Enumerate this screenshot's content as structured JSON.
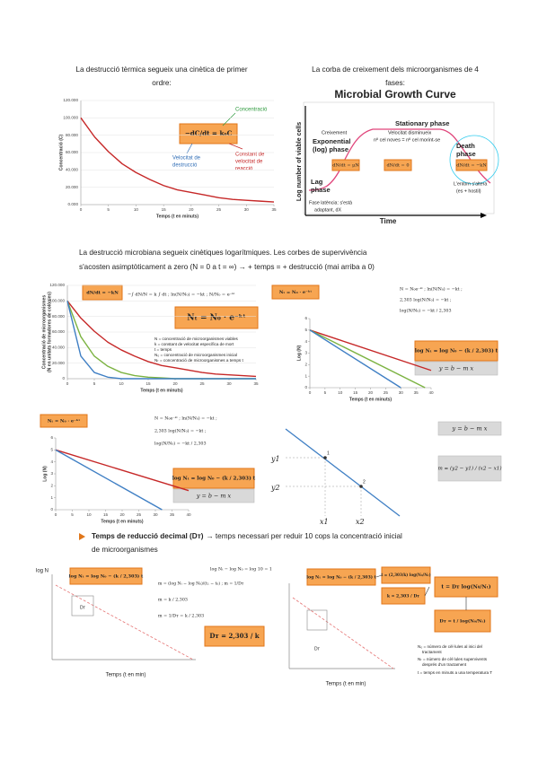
{
  "intro_left": [
    "La destrucció tèrmica segueix una cinètica de primer",
    "ordre:"
  ],
  "intro_right": [
    "La corba de creixement dels microorganismes de 4",
    "fases:"
  ],
  "paragraph": [
    "La destrucció microbiana segueix cinètiques logarítmiques. Les corbes de supervivència",
    "s'acosten asimptòticament a zero (N = 0 a t = ∞) → + temps = + destrucció (mai arriba a 0)"
  ],
  "bullet": {
    "bold": "Temps de reducció decimal (Dᴛ)",
    "text": "→ temps necessari per reduir 10 cops la concentració inicial",
    "text2": "de microorganismes"
  },
  "chart_data": [
    {
      "type": "line",
      "ylabel": "Concentració (C)",
      "xlabel": "Temps (t en minuts)",
      "xlim": [
        0,
        35
      ],
      "ylim": [
        0,
        120
      ],
      "grid": true,
      "xticks": [
        0,
        5,
        10,
        15,
        20,
        25,
        30,
        35
      ],
      "yticks": [
        {
          "value": 0,
          "label": "0.000"
        },
        {
          "value": 20,
          "label": "20.000"
        },
        {
          "value": 40,
          "label": "40.000"
        },
        {
          "value": 60,
          "label": "60.000"
        },
        {
          "value": 80,
          "label": "80.000"
        },
        {
          "value": 100,
          "label": "100.000"
        },
        {
          "value": 120,
          "label": "120.000"
        }
      ],
      "series": [
        {
          "color": "#c62828",
          "x": [
            0,
            2.5,
            5,
            7.5,
            10,
            12.5,
            15,
            17.5,
            20,
            22.5,
            25,
            27.5,
            30,
            32.5,
            35
          ],
          "values": [
            100,
            78,
            61,
            47,
            37,
            29,
            22,
            17,
            14,
            11,
            8,
            6,
            5,
            4,
            3
          ]
        }
      ],
      "formula": "−dC/dt = k₀C",
      "label_concentration": "Concentració",
      "label_rate": [
        "Velocitat de",
        "destrucció"
      ],
      "label_constant": [
        "Constant de",
        "velocitat de",
        "reacció"
      ]
    },
    {
      "type": "growth",
      "title": "Microbial Growth Curve",
      "ylabel": "Log number of viable cells",
      "xlabel": "Time",
      "growth_label": "Creixement",
      "exponential": [
        "Exponential",
        "(log) phase"
      ],
      "lag": [
        "Lag",
        "phase"
      ],
      "stationary": "Stationary phase",
      "stationary_note": [
        "Velocitat disminueix",
        "nº cel noves = nº cel morint-se"
      ],
      "death": [
        "Death",
        "phase"
      ],
      "lag_note": [
        "Fase latència: s'està",
        "adaptant, dX"
      ],
      "death_note": [
        "L'entorn s'altera",
        "(es + hostil)"
      ],
      "eq_growth": "dN/dt = μN",
      "eq_stationary": "dN/dt = 0",
      "eq_death": "dN/dt = −kN"
    },
    {
      "type": "line",
      "ylabel": [
        "Concentració de microorganismes",
        "(N en unitats formadores de colònies)"
      ],
      "xlabel": "Temps (t en minuts)",
      "xlim": [
        0,
        35
      ],
      "ylim": [
        0,
        120
      ],
      "grid": true,
      "xticks": [
        0,
        5,
        10,
        15,
        20,
        25,
        30,
        35
      ],
      "yticks": [
        0,
        {
          "value": 20,
          "label": "20.000"
        },
        {
          "value": 40,
          "label": "40.000"
        },
        {
          "value": 60,
          "label": "60.000"
        },
        {
          "value": 80,
          "label": "80.000"
        },
        {
          "value": 100,
          "label": "100.000"
        },
        {
          "value": 120,
          "label": "120.000"
        }
      ],
      "series": [
        {
          "color": "#c62828",
          "x": [
            0,
            2.5,
            5,
            7.5,
            10,
            12.5,
            15,
            17.5,
            20,
            22.5,
            25,
            27.5,
            30,
            32.5,
            35
          ],
          "values": [
            100,
            78,
            61,
            47,
            37,
            29,
            22,
            17,
            14,
            11,
            8,
            6,
            5,
            4,
            3
          ]
        },
        {
          "color": "#7cb342",
          "x": [
            0,
            2.5,
            5,
            7.5,
            10,
            12.5,
            15,
            17.5,
            20,
            22.5,
            25,
            27.5,
            30,
            32.5,
            35
          ],
          "values": [
            100,
            54,
            29,
            16,
            8,
            4,
            2,
            1,
            0,
            0,
            0,
            0,
            0,
            0,
            0
          ]
        },
        {
          "color": "#3f7fc4",
          "x": [
            0,
            2.5,
            5,
            7.5,
            10,
            12.5,
            15,
            17.5,
            20,
            22.5,
            25,
            27.5,
            30,
            32.5,
            35
          ],
          "values": [
            100,
            29,
            8,
            2,
            0,
            0,
            0,
            0,
            0,
            0,
            0,
            0,
            0,
            0,
            0
          ]
        }
      ],
      "eq_small": "dN/dt = −kN",
      "eq_integral": "−∫ dN/N = k ∫ dt ;  ln(N/N₀) = −kt ;  N/N₀ = e⁻ᵏᵗ",
      "eq_main": "Nₜ = N₀ · e⁻ᵏᵗ",
      "legend": [
        "N = concentració de microorganismes viables",
        "k = constant de velocitat específica de mort",
        "t = temps",
        "N₀ = concentració de microorganismes inicial",
        "Nₜ = concentració de microorganismes a temps t"
      ]
    },
    {
      "type": "line",
      "ylabel": "Log (N)",
      "xlabel": "Temps (t en minuts)",
      "xlim": [
        0,
        40
      ],
      "ylim": [
        0,
        6
      ],
      "grid": false,
      "xticks": [
        0,
        5,
        10,
        15,
        20,
        25,
        30,
        35,
        40
      ],
      "yticks": [
        0,
        1,
        2,
        3,
        4,
        5,
        6
      ],
      "series": [
        {
          "color": "#c62828",
          "x": [
            0,
            40
          ],
          "values": [
            5,
            1.5
          ]
        },
        {
          "color": "#7cb342",
          "x": [
            0,
            38
          ],
          "values": [
            5,
            0
          ]
        },
        {
          "color": "#3f7fc4",
          "x": [
            0,
            30
          ],
          "values": [
            5,
            0
          ]
        }
      ],
      "eq_small": "Nₜ = N₀ · e⁻ᵏᵗ",
      "eq_lines": [
        "N = N₀e⁻ᵏᵗ ;  ln(N/N₀) = −kt ;",
        "2,303 log(N/N₀) = −kt ;",
        "log(N/N₀) = −kt / 2,303"
      ],
      "eq_main": "log Nₜ = log N₀ − (k / 2,303) t",
      "eq_linear": "y  =  b  −  m  x"
    },
    {
      "type": "line",
      "ylabel": "Log (N)",
      "xlabel": "Temps (t en minuts)",
      "xlim": [
        0,
        40
      ],
      "ylim": [
        0,
        6
      ],
      "grid": false,
      "xticks": [
        0,
        5,
        10,
        15,
        20,
        25,
        30,
        35,
        40
      ],
      "yticks": [
        0,
        1,
        2,
        3,
        4,
        5,
        6
      ],
      "series": [
        {
          "color": "#c62828",
          "x": [
            0,
            40
          ],
          "values": [
            5,
            1.6
          ]
        },
        {
          "color": "#3f7fc4",
          "x": [
            0,
            32
          ],
          "values": [
            5,
            0
          ]
        }
      ],
      "eq_small": "Nₜ = N₀ · e⁻ᵏᵗ",
      "eq_lines": [
        "N = N₀e⁻ᵏᵗ ;  ln(N/N₀) = −kt ;",
        "2,303 log(N/N₀) = −kt ;",
        "log(N/N₀) = −kt / 2,303"
      ],
      "eq_main": "log Nₜ = log N₀ − (k / 2,303) t",
      "eq_linear": "y  =  b  −  m  x"
    }
  ],
  "line_diagram": {
    "y1": "y1",
    "y2": "y2",
    "x1": "x1",
    "x2": "x2",
    "p1": "1",
    "p2": "2",
    "eq1": "y = b − m x",
    "eq2": "m = (y2 − y1) / (x2 − x1)"
  },
  "decimal_left": {
    "ylabel": "log N",
    "xlabel": "Temps (t en min)",
    "dt": "Dᴛ",
    "eq_box": "log Nₜ = log N₀ − (k / 2,303) t",
    "eq_lines": [
      "log Nₜ − log N₀ = log 10 = 1",
      "m = (log Nₜ − log N₀)/(t₁ − t₀) ;  m = 1/Dᴛ",
      "m = k / 2,303",
      "m = 1/Dᴛ = k / 2,303"
    ],
    "eq_result": "Dᴛ = 2,303 / k"
  },
  "decimal_right": {
    "xlabel": "Temps (t en min)",
    "dt": "Dᴛ",
    "eq_box": "log Nₜ = log N₀ − (k / 2,303) t",
    "eq_t": "t = (2,303/k) log(N₀/Nₜ)",
    "eq_k": "k = 2,303 / Dᴛ",
    "eq_main": "t = Dᴛ log(N₀/Nₜ)",
    "eq_dt": "Dᴛ = t / log(N₀/Nₜ)",
    "legend": [
      "N₀ = número de cèl·lules al inici del",
      "tractament",
      "Nₜ = número de cèl·lules supervivents",
      "després d'un tractament",
      "t = temps en minuts a una temperatura T"
    ]
  }
}
